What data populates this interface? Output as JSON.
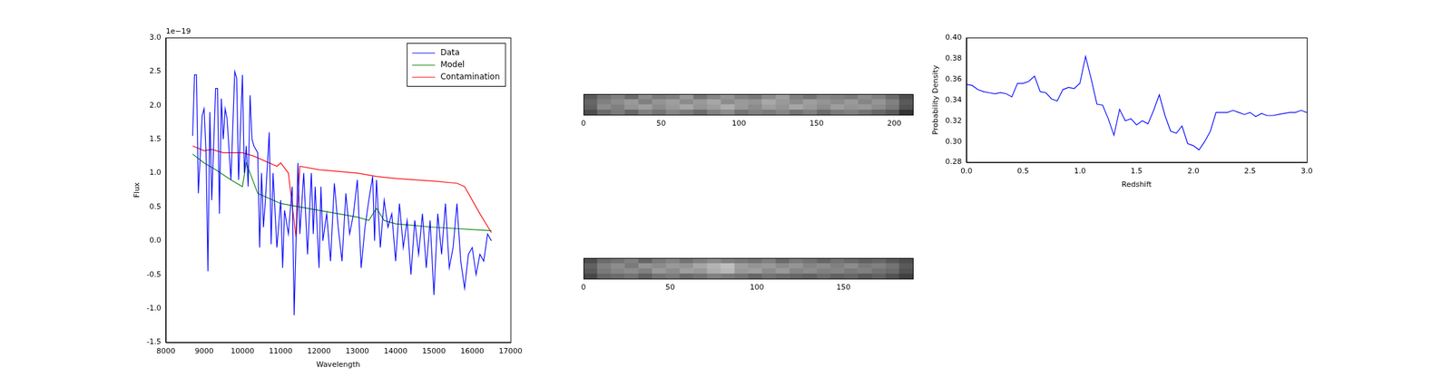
{
  "chart_data": [
    {
      "type": "line",
      "x_label": "Wavelength",
      "y_label": "Flux",
      "annotations": [
        "1e−19"
      ],
      "xlim": [
        8000,
        17000
      ],
      "xticks": [
        8000,
        9000,
        10000,
        11000,
        12000,
        13000,
        14000,
        15000,
        16000,
        17000
      ],
      "ylim": [
        -1.5,
        3.0
      ],
      "yticks": [
        -1.5,
        {
          "value": -1,
          "label": "-1.0"
        },
        -0.5,
        {
          "value": 0,
          "label": "0.0"
        },
        0.5,
        {
          "value": 1,
          "label": "1.0"
        },
        1.5,
        {
          "value": 2,
          "label": "2.0"
        },
        2.5,
        {
          "value": 3,
          "label": "3.0"
        }
      ],
      "grid": false,
      "legend": "upper right",
      "series": [
        {
          "name": "Data",
          "color": "#0000ff",
          "x": [
            8700,
            8750,
            8800,
            8850,
            8950,
            9000,
            9050,
            9100,
            9150,
            9200,
            9300,
            9350,
            9400,
            9450,
            9500,
            9550,
            9600,
            9700,
            9800,
            9850,
            9900,
            10000,
            10050,
            10100,
            10150,
            10200,
            10250,
            10300,
            10400,
            10450,
            10500,
            10550,
            10600,
            10700,
            10750,
            10800,
            10900,
            11000,
            11050,
            11100,
            11200,
            11300,
            11350,
            11400,
            11450,
            11500,
            11600,
            11700,
            11800,
            11850,
            11900,
            12000,
            12050,
            12100,
            12200,
            12300,
            12400,
            12500,
            12600,
            12700,
            12800,
            12900,
            13000,
            13100,
            13200,
            13300,
            13400,
            13450,
            13500,
            13600,
            13700,
            13800,
            13900,
            14000,
            14100,
            14200,
            14300,
            14400,
            14500,
            14600,
            14700,
            14800,
            14900,
            15000,
            15100,
            15200,
            15300,
            15400,
            15500,
            15600,
            15700,
            15800,
            15900,
            16000,
            16100,
            16200,
            16300,
            16400,
            16500
          ],
          "values": [
            1.55,
            2.45,
            2.45,
            0.7,
            1.85,
            1.95,
            1.3,
            -0.45,
            1.9,
            0.6,
            2.25,
            2.25,
            0.4,
            2.1,
            1.5,
            1.95,
            1.8,
            0.9,
            2.5,
            2.4,
            0.9,
            2.45,
            1.0,
            1.4,
            0.8,
            2.15,
            1.5,
            1.4,
            1.3,
            -0.1,
            1.0,
            0.2,
            0.6,
            1.6,
            -0.05,
            1.0,
            -0.1,
            0.6,
            -0.4,
            0.45,
            0.1,
            0.8,
            -1.1,
            0.0,
            1.15,
            0.1,
            1.0,
            -0.2,
            1.0,
            0.1,
            0.8,
            -0.4,
            0.8,
            0.0,
            0.4,
            -0.3,
            0.85,
            0.2,
            -0.3,
            0.7,
            0.1,
            0.4,
            0.9,
            -0.4,
            0.2,
            0.6,
            0.95,
            0.0,
            0.9,
            -0.1,
            0.6,
            0.2,
            0.4,
            -0.3,
            0.55,
            -0.1,
            0.3,
            -0.5,
            0.3,
            -0.2,
            0.4,
            -0.4,
            0.3,
            -0.8,
            0.4,
            -0.2,
            0.55,
            -0.4,
            -0.1,
            0.55,
            -0.3,
            -0.7,
            -0.2,
            -0.1,
            -0.5,
            -0.2,
            -0.3,
            0.1,
            0.0
          ]
        },
        {
          "name": "Model",
          "color": "#008000",
          "x": [
            8700,
            9000,
            9300,
            9700,
            10000,
            10100,
            10200,
            10400,
            11000,
            12000,
            13000,
            13300,
            13500,
            13700,
            14000,
            15000,
            16500
          ],
          "values": [
            1.28,
            1.15,
            1.05,
            0.9,
            0.8,
            1.15,
            1.0,
            0.7,
            0.55,
            0.45,
            0.35,
            0.3,
            0.48,
            0.3,
            0.25,
            0.2,
            0.15
          ]
        },
        {
          "name": "Contamination",
          "color": "#ff0000",
          "x": [
            8700,
            9000,
            9200,
            9500,
            10000,
            10300,
            10900,
            11000,
            11200,
            11400,
            11500,
            12000,
            13000,
            13500,
            14000,
            15000,
            15600,
            15800,
            16200,
            16500
          ],
          "values": [
            1.4,
            1.33,
            1.35,
            1.3,
            1.3,
            1.25,
            1.1,
            1.15,
            1.0,
            0.05,
            1.1,
            1.05,
            1.0,
            0.95,
            0.92,
            0.88,
            0.85,
            0.8,
            0.4,
            0.12
          ]
        }
      ]
    },
    {
      "type": "heatmap",
      "xlim": [
        0,
        212
      ],
      "xticks": [
        0,
        50,
        100,
        150,
        200
      ],
      "tick_labels": "x",
      "cells": [
        [
          0.35,
          0.45,
          0.5,
          0.42,
          0.55,
          0.48,
          0.5,
          0.6,
          0.45,
          0.52,
          0.58,
          0.5,
          0.47,
          0.55,
          0.62,
          0.5,
          0.45,
          0.52,
          0.5,
          0.48,
          0.55,
          0.5,
          0.42,
          0.3
        ],
        [
          0.4,
          0.5,
          0.55,
          0.6,
          0.5,
          0.58,
          0.62,
          0.55,
          0.6,
          0.65,
          0.55,
          0.6,
          0.58,
          0.66,
          0.6,
          0.55,
          0.62,
          0.58,
          0.55,
          0.6,
          0.52,
          0.58,
          0.5,
          0.35
        ],
        [
          0.38,
          0.55,
          0.5,
          0.58,
          0.62,
          0.55,
          0.6,
          0.65,
          0.58,
          0.62,
          0.68,
          0.6,
          0.55,
          0.62,
          0.58,
          0.65,
          0.6,
          0.55,
          0.62,
          0.58,
          0.6,
          0.55,
          0.48,
          0.32
        ],
        [
          0.3,
          0.42,
          0.48,
          0.4,
          0.5,
          0.45,
          0.52,
          0.48,
          0.42,
          0.5,
          0.55,
          0.45,
          0.5,
          0.48,
          0.52,
          0.45,
          0.5,
          0.42,
          0.48,
          0.5,
          0.45,
          0.4,
          0.35,
          0.2
        ]
      ]
    },
    {
      "type": "heatmap",
      "xlim": [
        0,
        190
      ],
      "xticks": [
        0,
        50,
        100,
        150
      ],
      "tick_labels": "x",
      "cells": [
        [
          0.3,
          0.42,
          0.45,
          0.5,
          0.4,
          0.48,
          0.52,
          0.45,
          0.5,
          0.55,
          0.5,
          0.48,
          0.45,
          0.5,
          0.42,
          0.48,
          0.45,
          0.4,
          0.45,
          0.42,
          0.38,
          0.4,
          0.35,
          0.3
        ],
        [
          0.38,
          0.5,
          0.55,
          0.48,
          0.58,
          0.55,
          0.6,
          0.58,
          0.65,
          0.7,
          0.75,
          0.62,
          0.58,
          0.6,
          0.55,
          0.58,
          0.52,
          0.55,
          0.5,
          0.55,
          0.48,
          0.5,
          0.45,
          0.35
        ],
        [
          0.35,
          0.48,
          0.52,
          0.55,
          0.5,
          0.6,
          0.55,
          0.62,
          0.6,
          0.68,
          0.72,
          0.6,
          0.62,
          0.55,
          0.6,
          0.52,
          0.55,
          0.5,
          0.52,
          0.48,
          0.5,
          0.45,
          0.42,
          0.32
        ],
        [
          0.28,
          0.4,
          0.42,
          0.45,
          0.38,
          0.45,
          0.48,
          0.42,
          0.45,
          0.5,
          0.48,
          0.45,
          0.4,
          0.45,
          0.42,
          0.4,
          0.38,
          0.42,
          0.38,
          0.4,
          0.35,
          0.38,
          0.32,
          0.25
        ]
      ]
    },
    {
      "type": "line",
      "x_label": "Redshift",
      "y_label": "Probability Density",
      "xlim": [
        0,
        3
      ],
      "xticks": [
        {
          "value": 0,
          "label": "0.0"
        },
        0.5,
        {
          "value": 1,
          "label": "1.0"
        },
        1.5,
        {
          "value": 2,
          "label": "2.0"
        },
        2.5,
        {
          "value": 3,
          "label": "3.0"
        }
      ],
      "ylim": [
        0.28,
        0.4
      ],
      "yticks": [
        0.28,
        {
          "value": 0.3,
          "label": "0.30"
        },
        0.32,
        0.34,
        0.36,
        0.38,
        {
          "value": 0.4,
          "label": "0.40"
        }
      ],
      "grid": false,
      "series": [
        {
          "color": "#0000ff",
          "x": [
            0,
            0.05,
            0.1,
            0.15,
            0.2,
            0.25,
            0.3,
            0.35,
            0.4,
            0.45,
            0.5,
            0.55,
            0.6,
            0.65,
            0.7,
            0.75,
            0.8,
            0.85,
            0.9,
            0.95,
            1.0,
            1.05,
            1.1,
            1.15,
            1.2,
            1.25,
            1.3,
            1.35,
            1.4,
            1.45,
            1.5,
            1.55,
            1.6,
            1.65,
            1.7,
            1.75,
            1.8,
            1.85,
            1.9,
            1.95,
            2.0,
            2.05,
            2.1,
            2.15,
            2.2,
            2.25,
            2.3,
            2.35,
            2.4,
            2.45,
            2.5,
            2.55,
            2.6,
            2.65,
            2.7,
            2.75,
            2.8,
            2.85,
            2.9,
            2.95,
            3.0
          ],
          "values": [
            0.355,
            0.354,
            0.35,
            0.348,
            0.347,
            0.346,
            0.347,
            0.346,
            0.343,
            0.356,
            0.356,
            0.358,
            0.363,
            0.348,
            0.347,
            0.341,
            0.339,
            0.35,
            0.352,
            0.351,
            0.356,
            0.382,
            0.36,
            0.336,
            0.335,
            0.322,
            0.306,
            0.331,
            0.32,
            0.322,
            0.316,
            0.32,
            0.317,
            0.33,
            0.345,
            0.325,
            0.31,
            0.308,
            0.315,
            0.298,
            0.296,
            0.292,
            0.3,
            0.31,
            0.328,
            0.328,
            0.328,
            0.33,
            0.328,
            0.326,
            0.328,
            0.324,
            0.327,
            0.325,
            0.325,
            0.326,
            0.327,
            0.328,
            0.328,
            0.33,
            0.328
          ]
        }
      ]
    }
  ]
}
